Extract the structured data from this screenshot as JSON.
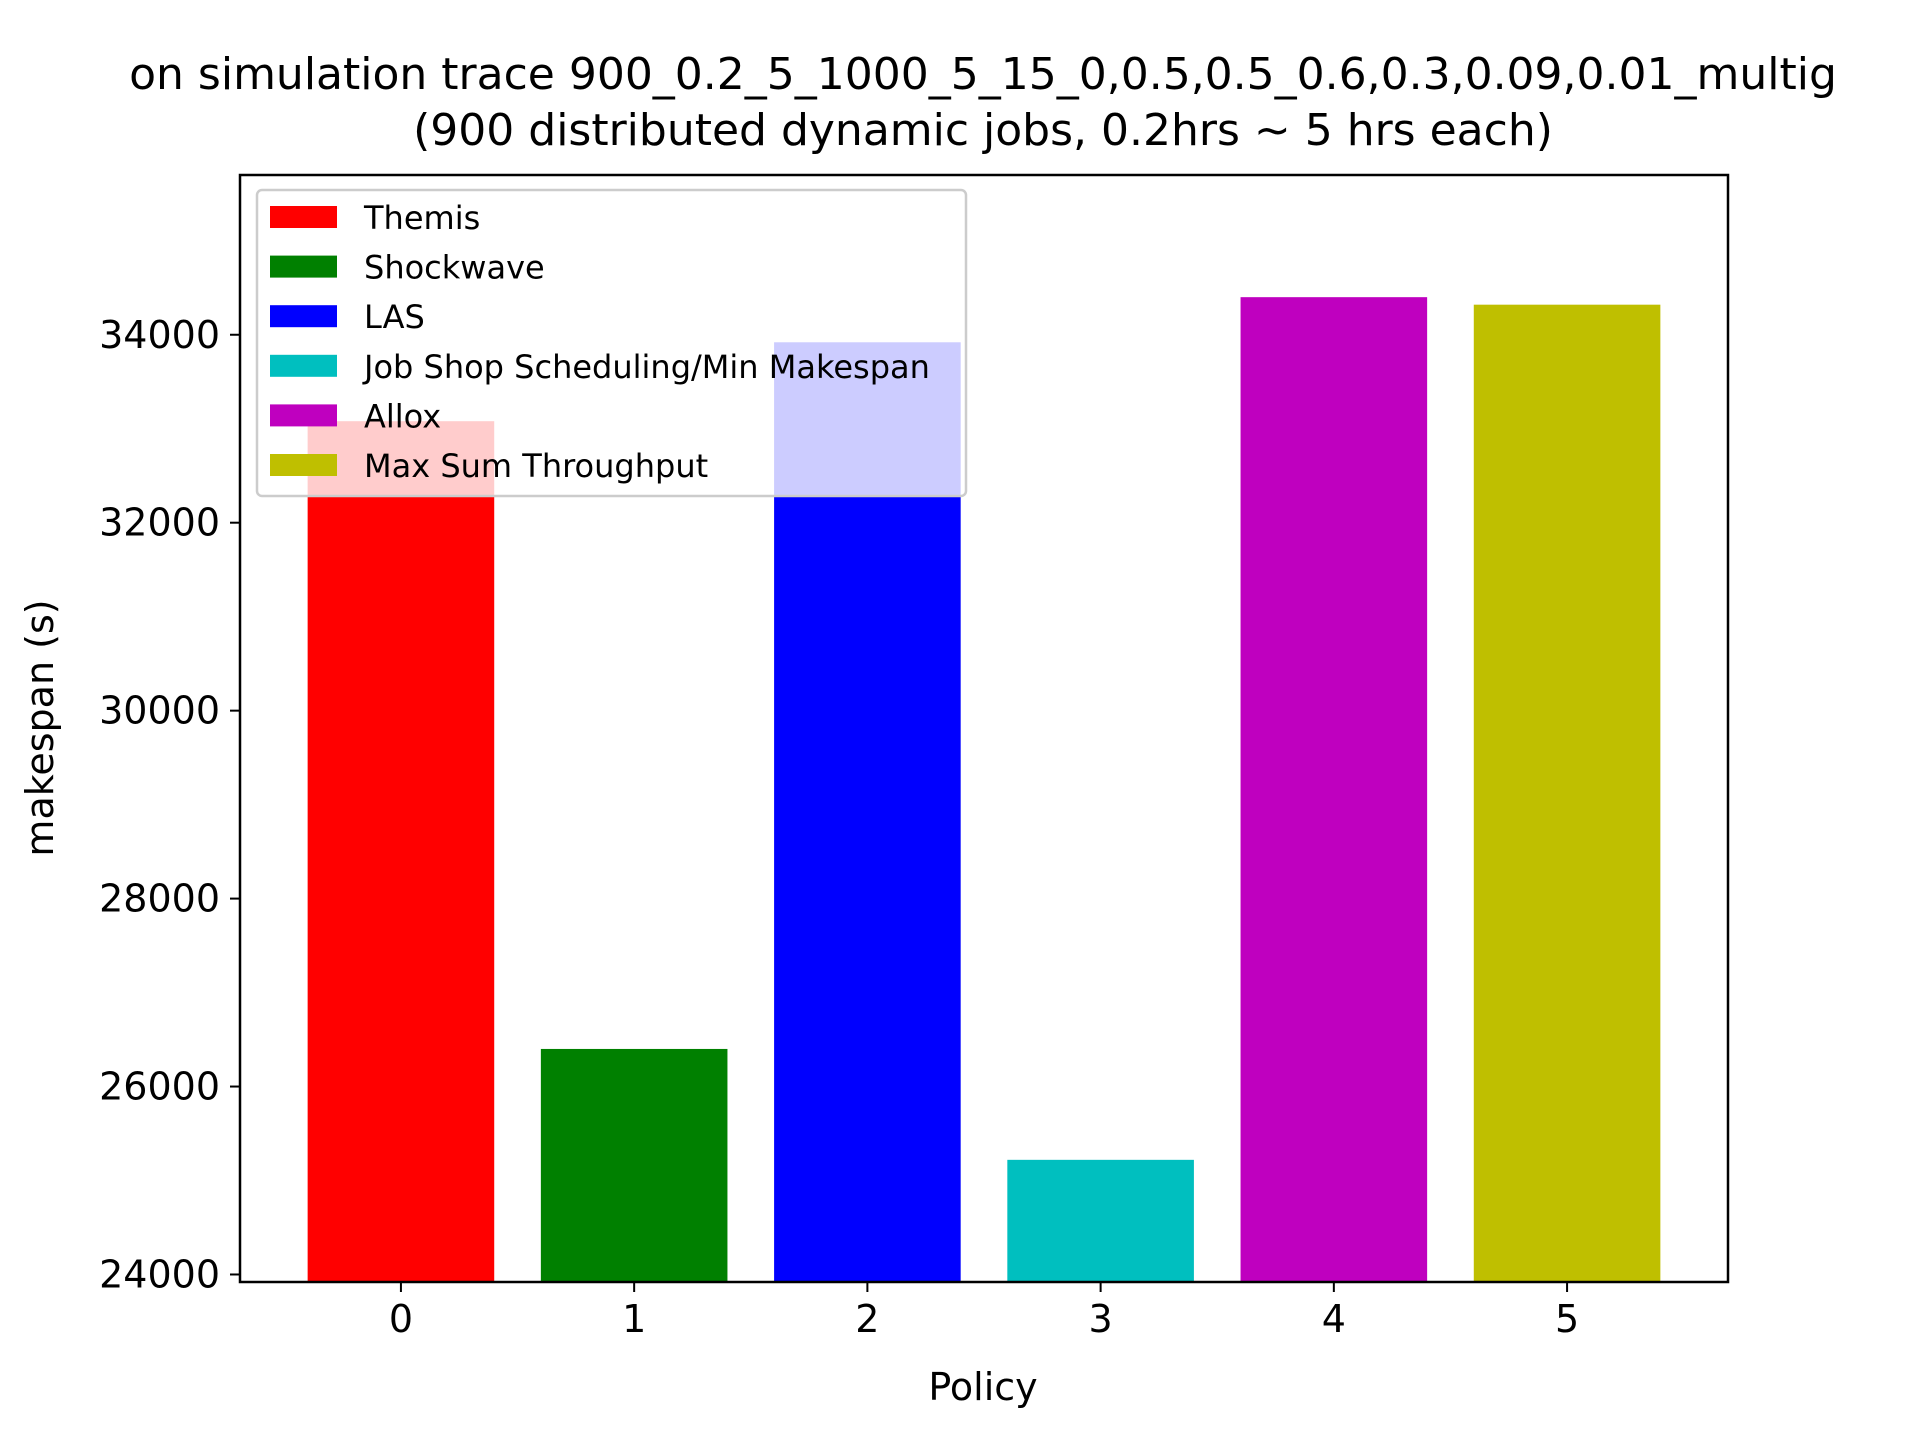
{
  "chart_data": {
    "type": "bar",
    "title_line1": "on simulation trace 900_0.2_5_1000_5_15_0,0.5,0.5_0.6,0.3,0.09,0.01_multig",
    "title_line2": "(900 distributed dynamic jobs, 0.2hrs ~ 5 hrs each)",
    "xlabel": "Policy",
    "ylabel": "makespan (s)",
    "categories": [
      "0",
      "1",
      "2",
      "3",
      "4",
      "5"
    ],
    "series": [
      {
        "name": "Themis",
        "category": "0",
        "value": 33080,
        "color": "#ff0000"
      },
      {
        "name": "Shockwave",
        "category": "1",
        "value": 26400,
        "color": "#008000"
      },
      {
        "name": "LAS",
        "category": "2",
        "value": 33920,
        "color": "#0000ff"
      },
      {
        "name": "Job Shop Scheduling/Min Makespan",
        "category": "3",
        "value": 25220,
        "color": "#00bfbf"
      },
      {
        "name": "Allox",
        "category": "4",
        "value": 34400,
        "color": "#bf00bf"
      },
      {
        "name": "Max Sum Throughput",
        "category": "5",
        "value": 34320,
        "color": "#bfbf00"
      }
    ],
    "yticks": [
      24000,
      26000,
      28000,
      30000,
      32000,
      34000
    ],
    "ytick_labels": [
      "24000",
      "26000",
      "28000",
      "30000",
      "32000",
      "34000"
    ],
    "ylim": [
      23920,
      35700
    ],
    "xlim": [
      -0.69,
      5.69
    ],
    "legend_position": "upper-left",
    "grid": false
  }
}
